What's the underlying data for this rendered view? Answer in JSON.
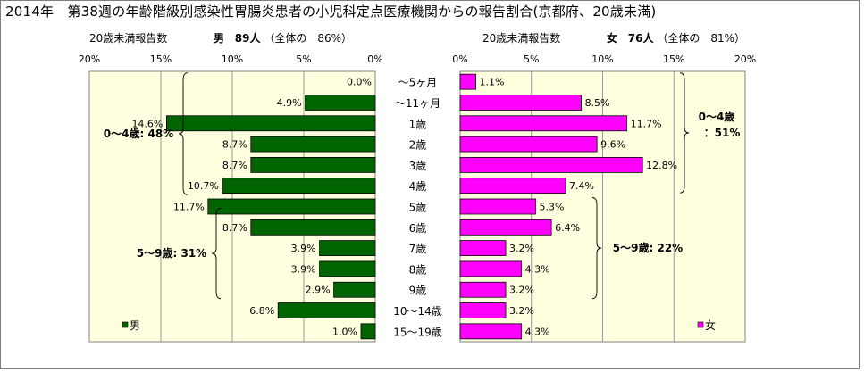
{
  "title": "2014年　第38週の年齢階級別感染性胃腸炎患者の小児科定点医療機関からの報告割合(京都府、20歳未満)",
  "header_left": {
    "label": "20歳未満報告数",
    "sex": "男",
    "count": "89人",
    "ratio": "（全体の　86%）"
  },
  "header_right": {
    "label": "20歳未満報告数",
    "sex": "女",
    "count": "76人",
    "ratio": "（全体の　81%）"
  },
  "chart_data": [
    {
      "type": "bar",
      "orientation": "horizontal",
      "direction": "right-to-left",
      "series": [
        {
          "name": "男",
          "color": "#006400"
        }
      ],
      "categories": [
        "～5ヶ月",
        "～11ヶ月",
        "1歳",
        "2歳",
        "3歳",
        "4歳",
        "5歳",
        "6歳",
        "7歳",
        "8歳",
        "9歳",
        "10～14歳",
        "15～19歳"
      ],
      "values": [
        0.0,
        4.9,
        14.6,
        8.7,
        8.7,
        10.7,
        11.7,
        8.7,
        3.9,
        3.9,
        2.9,
        6.8,
        1.0
      ],
      "data_labels": [
        "0.0%",
        "4.9%",
        "14.6%",
        "8.7%",
        "8.7%",
        "10.7%",
        "11.7%",
        "8.7%",
        "3.9%",
        "3.9%",
        "2.9%",
        "6.8%",
        "1.0%"
      ],
      "xlim": [
        0,
        20
      ],
      "ticks": [
        "20%",
        "15%",
        "10%",
        "5%",
        "0%"
      ],
      "legend": {
        "label": "男",
        "placement": "bottom-left"
      },
      "annotations": [
        {
          "text": "0～4歳: 48%",
          "from": "～5ヶ月",
          "to": "4歳"
        },
        {
          "text": "5～9歳: 31%",
          "from": "5歳",
          "to": "9歳"
        }
      ]
    },
    {
      "type": "bar",
      "orientation": "horizontal",
      "direction": "left-to-right",
      "series": [
        {
          "name": "女",
          "color": "#ff00ff"
        }
      ],
      "categories": [
        "～5ヶ月",
        "～11ヶ月",
        "1歳",
        "2歳",
        "3歳",
        "4歳",
        "5歳",
        "6歳",
        "7歳",
        "8歳",
        "9歳",
        "10～14歳",
        "15～19歳"
      ],
      "values": [
        1.1,
        8.5,
        11.7,
        9.6,
        12.8,
        7.4,
        5.3,
        6.4,
        3.2,
        4.3,
        3.2,
        3.2,
        4.3
      ],
      "data_labels": [
        "1.1%",
        "8.5%",
        "11.7%",
        "9.6%",
        "12.8%",
        "7.4%",
        "5.3%",
        "6.4%",
        "3.2%",
        "4.3%",
        "3.2%",
        "3.2%",
        "4.3%"
      ],
      "xlim": [
        0,
        20
      ],
      "ticks": [
        "0%",
        "5%",
        "10%",
        "15%",
        "20%"
      ],
      "legend": {
        "label": "女",
        "placement": "bottom-right"
      },
      "annotations": [
        {
          "text_lines": [
            "0～4歳",
            "：51%"
          ],
          "from": "～5ヶ月",
          "to": "4歳"
        },
        {
          "text": "5～9歳: 22%",
          "from": "5歳",
          "to": "9歳"
        }
      ]
    }
  ]
}
